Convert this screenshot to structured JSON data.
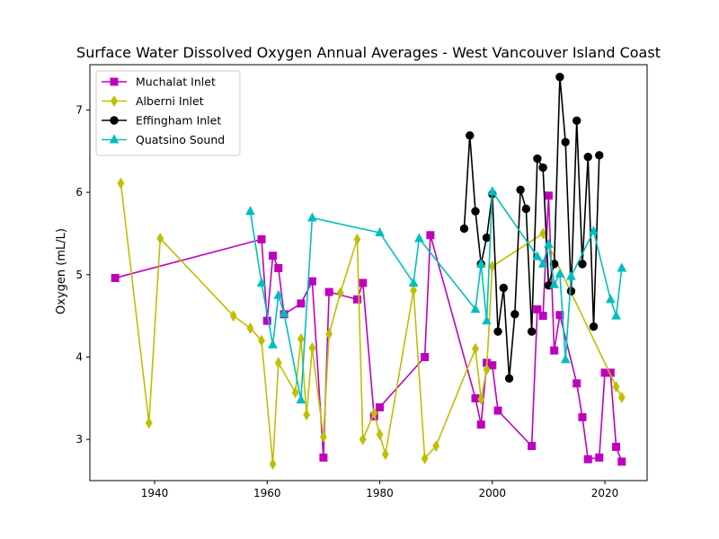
{
  "chart_data": {
    "type": "line",
    "title": "Surface Water Dissolved Oxygen Annual Averages - West Vancouver Island Coast",
    "xlabel": "",
    "ylabel": "Oxygen (mL/L)",
    "xlim": [
      1928.5,
      2027.5
    ],
    "ylim": [
      2.5,
      7.55
    ],
    "xticks": [
      1940,
      1960,
      1980,
      2000,
      2020
    ],
    "yticks": [
      3,
      4,
      5,
      6,
      7
    ],
    "grid": false,
    "legend_position": "top-left",
    "series": [
      {
        "name": "Muchalat Inlet",
        "color": "#bf00bf",
        "marker": "square",
        "x": [
          1933,
          1959,
          1960,
          1961,
          1962,
          1963,
          1966,
          1968,
          1970,
          1971,
          1976,
          1977,
          1979,
          1980,
          1988,
          1989,
          1997,
          1998,
          1999,
          2000,
          2001,
          2007,
          2008,
          2009,
          2010,
          2011,
          2012,
          2015,
          2016,
          2017,
          2019,
          2020,
          2021,
          2022,
          2023
        ],
        "y": [
          4.96,
          5.43,
          4.44,
          5.23,
          5.08,
          4.52,
          4.65,
          4.92,
          2.78,
          4.79,
          4.7,
          4.9,
          3.28,
          3.39,
          4.0,
          5.48,
          3.5,
          3.18,
          3.93,
          3.9,
          3.35,
          2.92,
          4.58,
          4.5,
          5.96,
          4.08,
          4.51,
          3.68,
          3.27,
          2.76,
          2.78,
          3.81,
          3.81,
          2.91,
          2.73
        ]
      },
      {
        "name": "Alberni Inlet",
        "color": "#bfbf00",
        "marker": "thin_diamond",
        "x": [
          1934,
          1939,
          1941,
          1954,
          1957,
          1959,
          1961,
          1962,
          1965,
          1966,
          1967,
          1968,
          1970,
          1971,
          1973,
          1976,
          1977,
          1979,
          1980,
          1981,
          1986,
          1988,
          1990,
          1997,
          1998,
          1999,
          2000,
          2009,
          2022,
          2023
        ],
        "y": [
          6.11,
          3.2,
          5.44,
          4.5,
          4.35,
          4.2,
          2.7,
          3.93,
          3.57,
          4.22,
          3.3,
          4.11,
          3.03,
          4.28,
          4.78,
          5.43,
          3.0,
          3.32,
          3.06,
          2.82,
          4.81,
          2.77,
          2.92,
          4.1,
          3.49,
          3.85,
          5.1,
          5.5,
          3.64,
          3.51
        ]
      },
      {
        "name": "Effingham Inlet",
        "color": "#000000",
        "marker": "circle",
        "x": [
          1995,
          1996,
          1997,
          1998,
          1999,
          2000,
          2001,
          2002,
          2003,
          2004,
          2005,
          2006,
          2007,
          2008,
          2009,
          2010,
          2011,
          2012,
          2013,
          2014,
          2015,
          2016,
          2017,
          2018,
          2019
        ],
        "y": [
          5.56,
          6.69,
          5.77,
          5.13,
          5.45,
          5.98,
          4.31,
          4.84,
          3.74,
          4.52,
          6.03,
          5.8,
          4.31,
          6.41,
          6.3,
          4.87,
          5.13,
          7.4,
          6.61,
          4.8,
          6.87,
          5.13,
          6.43,
          4.37,
          6.45
        ]
      },
      {
        "name": "Quatsino Sound",
        "color": "#00bfbf",
        "marker": "triangle",
        "x": [
          1957,
          1959,
          1961,
          1962,
          1963,
          1966,
          1968,
          1980,
          1986,
          1987,
          1997,
          1998,
          1999,
          2000,
          2008,
          2009,
          2010,
          2011,
          2012,
          2013,
          2014,
          2018,
          2021,
          2022,
          2023
        ],
        "y": [
          5.77,
          4.9,
          4.15,
          4.75,
          4.53,
          3.48,
          5.69,
          5.51,
          4.9,
          5.44,
          4.58,
          5.13,
          4.44,
          6.01,
          5.22,
          5.13,
          5.37,
          4.88,
          5.01,
          3.97,
          4.98,
          5.53,
          4.7,
          4.5,
          5.08
        ]
      }
    ]
  }
}
